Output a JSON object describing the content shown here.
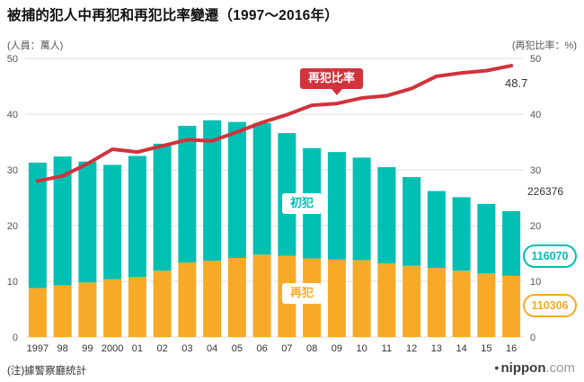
{
  "title": "被捕的犯人中再犯和再犯比率變遷（1997～2016年）",
  "axis_captions": {
    "left": "(人員：萬人)",
    "right": "(再犯比率：%)"
  },
  "annotations": {
    "rate_label": "再犯比率",
    "first_label": "初犯",
    "repeat_label": "再犯",
    "rate_final": "48.7",
    "total_final": "226376",
    "first_final": "116070",
    "repeat_final": "110306"
  },
  "note": "(注)據警察廳統計",
  "logo": {
    "dot": "●",
    "name": "nippon",
    "suffix": ".com"
  },
  "colors": {
    "teal": "#00BFB3",
    "orange": "#F7A928",
    "red": "#D2323C",
    "grid": "#DCDCDC",
    "tick": "#555555",
    "xtick": "#333333"
  },
  "chart_data": {
    "type": "bar",
    "stacked": true,
    "title": "被捕的犯人中再犯和再犯比率變遷（1997～2016年）",
    "categories": [
      "1997",
      "98",
      "99",
      "2000",
      "01",
      "02",
      "03",
      "04",
      "05",
      "06",
      "07",
      "08",
      "09",
      "10",
      "11",
      "12",
      "13",
      "14",
      "15",
      "16"
    ],
    "series": [
      {
        "name": "再犯",
        "color_key": "orange",
        "values": [
          8.8,
          9.3,
          9.8,
          10.4,
          10.8,
          11.9,
          13.4,
          13.7,
          14.2,
          14.8,
          14.6,
          14.1,
          13.9,
          13.8,
          13.2,
          12.8,
          12.4,
          11.9,
          11.4,
          11.0
        ]
      },
      {
        "name": "初犯",
        "color_key": "teal",
        "values": [
          22.5,
          23.1,
          21.7,
          20.5,
          21.7,
          22.8,
          24.5,
          25.2,
          24.4,
          23.6,
          22.0,
          19.8,
          19.3,
          18.4,
          17.3,
          15.9,
          13.8,
          13.2,
          12.5,
          11.6
        ]
      }
    ],
    "line": {
      "name": "再犯比率",
      "color_key": "red",
      "axis": "right",
      "values": [
        28.0,
        28.9,
        31.1,
        33.7,
        33.2,
        34.3,
        35.4,
        35.2,
        36.8,
        38.5,
        39.9,
        41.6,
        41.9,
        42.9,
        43.3,
        44.6,
        46.8,
        47.4,
        47.8,
        48.7
      ]
    },
    "ylim": [
      0,
      50
    ],
    "yticks": [
      0,
      10,
      20,
      30,
      40,
      50
    ],
    "left_axis_unit": "萬人",
    "right_axis_unit": "%",
    "legend_position": "in-plot-callouts",
    "grid": true,
    "final_year_totals": {
      "total": 226376,
      "first_offense": 116070,
      "repeat_offense": 110306,
      "rate_percent": 48.7
    }
  }
}
